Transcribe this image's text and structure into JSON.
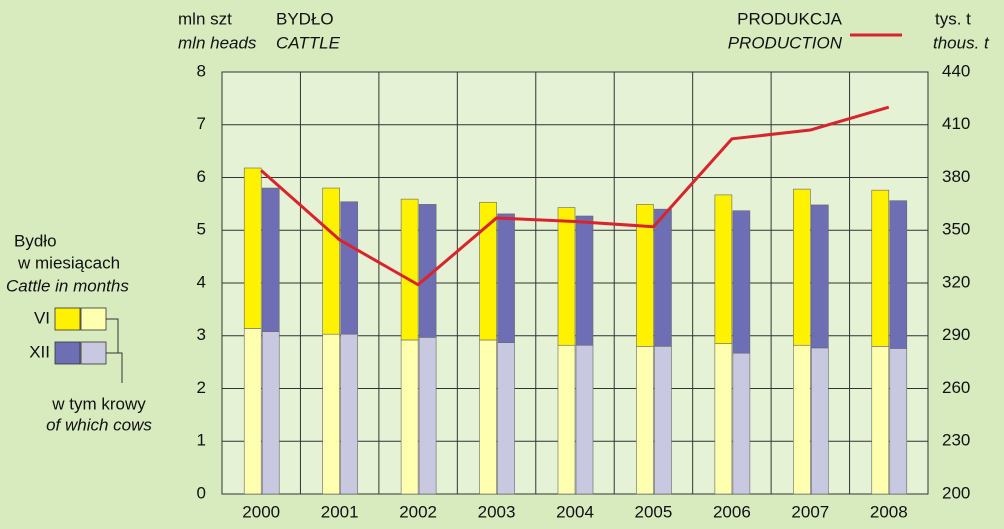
{
  "chart_data": {
    "type": "bar",
    "title": [
      "BYDŁO",
      "CATTLE"
    ],
    "y_label": [
      "mln szt",
      "mln heads"
    ],
    "y2_label": [
      "tys. t",
      "thous. t"
    ],
    "categories": [
      "2000",
      "2001",
      "2002",
      "2003",
      "2004",
      "2005",
      "2006",
      "2007",
      "2008"
    ],
    "ylim": [
      0,
      8
    ],
    "yticks": [
      0,
      1,
      2,
      3,
      4,
      5,
      6,
      7,
      8
    ],
    "y2lim": [
      200,
      440
    ],
    "y2ticks": [
      200,
      230,
      260,
      290,
      320,
      350,
      380,
      410,
      440
    ],
    "grid": true,
    "legend_title": [
      "Bydło",
      "w miesiącach",
      "Cattle in months"
    ],
    "cows_label": [
      "w tym krowy",
      "of which cows"
    ],
    "series": [
      {
        "name": "VI",
        "color": "#fff200",
        "cows_color": "#ffffb0",
        "cows": [
          3.14,
          3.03,
          2.92,
          2.92,
          2.82,
          2.8,
          2.85,
          2.82,
          2.8
        ],
        "values": [
          3.04,
          2.77,
          2.67,
          2.61,
          2.61,
          2.69,
          2.82,
          2.96,
          2.96
        ]
      },
      {
        "name": "XII",
        "color": "#6e6eb4",
        "cows_color": "#c8c8e0",
        "cows": [
          3.08,
          3.03,
          2.97,
          2.87,
          2.82,
          2.8,
          2.67,
          2.77,
          2.76
        ],
        "values": [
          2.72,
          2.51,
          2.52,
          2.44,
          2.45,
          2.6,
          2.7,
          2.71,
          2.8
        ]
      }
    ],
    "line": {
      "name": [
        "PRODUKCJA",
        "PRODUCTION"
      ],
      "color": "#d8242c",
      "axis": "y2",
      "values": [
        384,
        344.5,
        319,
        357,
        355,
        352,
        402,
        407,
        420
      ]
    }
  }
}
